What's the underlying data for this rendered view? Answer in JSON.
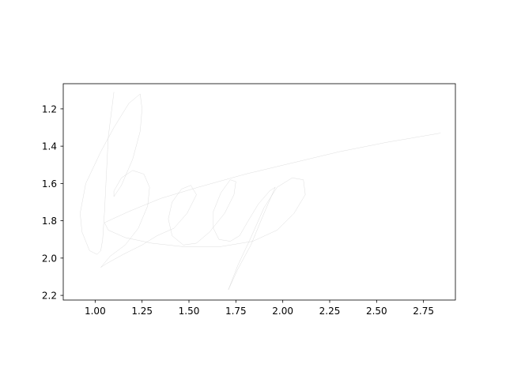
{
  "chart_data": {
    "type": "line",
    "title": "",
    "xlabel": "",
    "ylabel": "",
    "xlim": [
      0.83,
      2.92
    ],
    "ylim": [
      2.225,
      1.065
    ],
    "y_inverted": true,
    "grid": false,
    "line_color": "#cfcfcf",
    "x_ticks": [
      {
        "value": 1.0,
        "label": "1.00"
      },
      {
        "value": 1.25,
        "label": "1.25"
      },
      {
        "value": 1.5,
        "label": "1.50"
      },
      {
        "value": 1.75,
        "label": "1.75"
      },
      {
        "value": 2.0,
        "label": "2.00"
      },
      {
        "value": 2.25,
        "label": "2.25"
      },
      {
        "value": 2.5,
        "label": "2.50"
      },
      {
        "value": 2.75,
        "label": "2.75"
      }
    ],
    "y_ticks": [
      {
        "value": 1.2,
        "label": "1.2"
      },
      {
        "value": 1.4,
        "label": "1.4"
      },
      {
        "value": 1.6,
        "label": "1.6"
      },
      {
        "value": 1.8,
        "label": "1.8"
      },
      {
        "value": 2.0,
        "label": "2.0"
      },
      {
        "value": 2.2,
        "label": "2.2"
      }
    ],
    "series": [
      {
        "points": [
          [
            1.1,
            1.11
          ],
          [
            1.07,
            1.35
          ],
          [
            1.06,
            1.55
          ],
          [
            1.05,
            1.75
          ],
          [
            1.04,
            1.9
          ],
          [
            1.03,
            1.96
          ],
          [
            1.01,
            1.98
          ],
          [
            0.97,
            1.96
          ],
          [
            0.93,
            1.86
          ],
          [
            0.92,
            1.76
          ],
          [
            0.95,
            1.6
          ],
          [
            1.03,
            1.43
          ],
          [
            1.1,
            1.3
          ],
          [
            1.18,
            1.17
          ],
          [
            1.24,
            1.12
          ],
          [
            1.25,
            1.2
          ],
          [
            1.24,
            1.32
          ],
          [
            1.2,
            1.47
          ],
          [
            1.14,
            1.61
          ],
          [
            1.1,
            1.67
          ],
          [
            1.1,
            1.64
          ],
          [
            1.14,
            1.57
          ],
          [
            1.2,
            1.53
          ],
          [
            1.26,
            1.55
          ],
          [
            1.29,
            1.62
          ],
          [
            1.28,
            1.72
          ],
          [
            1.23,
            1.84
          ],
          [
            1.16,
            1.93
          ],
          [
            1.08,
            1.99
          ],
          [
            1.03,
            2.05
          ],
          [
            1.06,
            2.03
          ],
          [
            1.15,
            1.98
          ],
          [
            1.25,
            1.93
          ],
          [
            1.33,
            1.88
          ],
          [
            1.42,
            1.84
          ],
          [
            1.49,
            1.76
          ],
          [
            1.54,
            1.66
          ],
          [
            1.51,
            1.61
          ],
          [
            1.46,
            1.63
          ],
          [
            1.41,
            1.7
          ],
          [
            1.39,
            1.79
          ],
          [
            1.41,
            1.88
          ],
          [
            1.47,
            1.93
          ],
          [
            1.54,
            1.92
          ],
          [
            1.61,
            1.86
          ],
          [
            1.69,
            1.76
          ],
          [
            1.74,
            1.66
          ],
          [
            1.75,
            1.59
          ],
          [
            1.72,
            1.58
          ],
          [
            1.67,
            1.65
          ],
          [
            1.63,
            1.75
          ],
          [
            1.63,
            1.84
          ],
          [
            1.66,
            1.9
          ],
          [
            1.72,
            1.91
          ],
          [
            1.77,
            1.88
          ],
          [
            1.81,
            1.81
          ],
          [
            1.87,
            1.71
          ],
          [
            1.93,
            1.64
          ],
          [
            1.96,
            1.62
          ],
          [
            1.9,
            1.76
          ],
          [
            1.83,
            1.93
          ],
          [
            1.76,
            2.06
          ],
          [
            1.71,
            2.17
          ],
          [
            1.76,
            2.04
          ],
          [
            1.83,
            1.89
          ],
          [
            1.9,
            1.73
          ],
          [
            1.97,
            1.62
          ],
          [
            2.05,
            1.57
          ],
          [
            2.11,
            1.58
          ],
          [
            2.12,
            1.66
          ],
          [
            2.06,
            1.76
          ],
          [
            1.97,
            1.85
          ],
          [
            1.84,
            1.91
          ],
          [
            1.66,
            1.94
          ],
          [
            1.48,
            1.94
          ],
          [
            1.3,
            1.92
          ],
          [
            1.16,
            1.89
          ],
          [
            1.07,
            1.85
          ],
          [
            1.05,
            1.81
          ],
          [
            1.18,
            1.75
          ],
          [
            1.35,
            1.68
          ],
          [
            1.55,
            1.62
          ],
          [
            1.8,
            1.55
          ],
          [
            2.05,
            1.49
          ],
          [
            2.3,
            1.43
          ],
          [
            2.55,
            1.38
          ],
          [
            2.84,
            1.33
          ]
        ]
      }
    ]
  }
}
